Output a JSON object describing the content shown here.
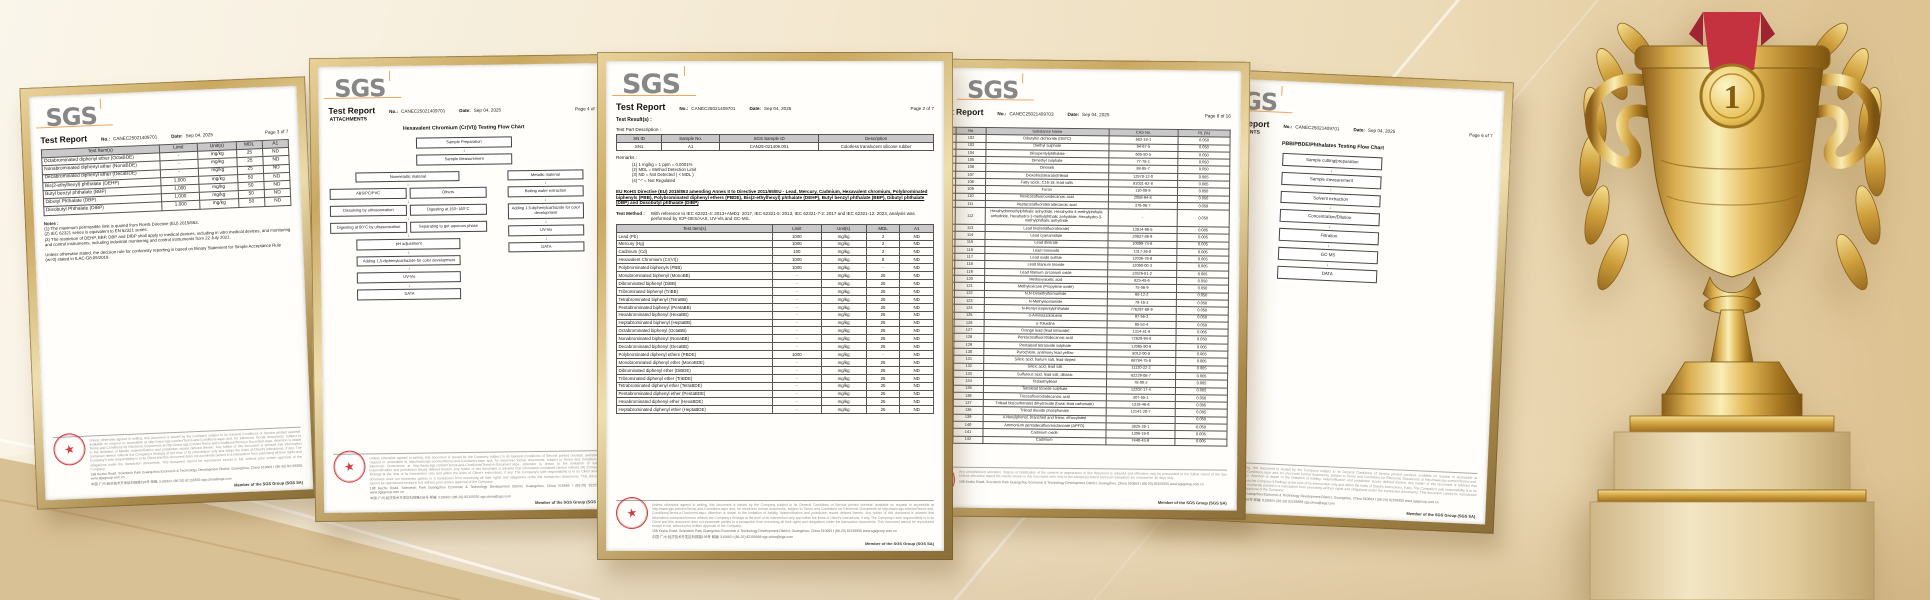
{
  "labels": {
    "brand": "SGS",
    "no": "No.:",
    "date": "Date:"
  },
  "scene": {
    "trophy_medal_number": "1"
  },
  "footer": {
    "disclaimer1": "Unless otherwise agreed in writing, this document is issued by the Company subject to its General Conditions of Service printed overleaf, available on request or accessible at http://www.sgs.com/en/Terms-and-Conditions.aspx and, for electronic format documents, subject to Terms and Conditions for Electronic Documents at http://www.sgs.com/en/Terms-and-Conditions/Terms-e-Document.aspx. Attention is drawn to the limitation of liability, indemnification and jurisdiction issues defined therein. Any holder of this document is advised that information contained hereon reflects the Company's findings at the time of its intervention only and within the limits of Client's instructions, if any. The Company's sole responsibility is to its Client and this document does not exonerate parties to a transaction from exercising all their rights and obligations under the transaction documents. This document cannot be reproduced except in full, without prior written approval of the Company.",
    "disclaimer2": "Any unauthorized alteration, forgery or falsification of the content or appearance of this document is unlawful and offenders may be prosecuted to the fullest extent of the law. Unless otherwise stated the results shown in this test report refer only to the sample(s) tested and such sample(s) are retained for 30 days only.",
    "address_en": "198 Kezhu Road, Scientech Park Guangzhou Economic & Technology Development District, Guangzhou, China 510663    t (86-20) 82155555    www.sgsgroup.com.cn",
    "address_cn": "中国·广州·经济技术开发区科珠路198号    邮编: 510663    t (86-20) 82155555    sgs.china@sgs.com",
    "member": "Member of the SGS Group (SGS SA)"
  },
  "cert1": {
    "title": "Test Report",
    "no": "CANEC25021409701",
    "date": "Sep 04, 2025",
    "page": "Page 3 of 7",
    "table": {
      "headers": [
        "Test Item(s)",
        "Limit",
        "Unit(s)",
        "MDL",
        "A1"
      ],
      "rows": [
        [
          "Octabrominated diphenyl ether (OctaBDE)",
          "-",
          "mg/kg",
          "25",
          "ND"
        ],
        [
          "Nonabrominated diphenyl ether (NonaBDE)",
          "-",
          "mg/kg",
          "25",
          "ND"
        ],
        [
          "Decabrominated diphenyl ether (DecaBDE)",
          "-",
          "mg/kg",
          "25",
          "ND"
        ],
        [
          "Bis(2-ethylhexyl) phthalate (DEHP)",
          "1,000",
          "mg/kg",
          "50",
          "ND"
        ],
        [
          "Butyl benzyl phthalate (BBP)",
          "1,000",
          "mg/kg",
          "50",
          "ND"
        ],
        [
          "Dibutyl Phthalate (DBP)",
          "1,000",
          "mg/kg",
          "50",
          "ND"
        ],
        [
          "Diisobutyl Phthalate (DIBP)",
          "1,000",
          "mg/kg",
          "50",
          "ND"
        ]
      ]
    },
    "notes_title": "Notes :",
    "notes": [
      "(1) The maximum permissible limit is quoted from RoHS Directive (EU) 2015/863.",
      "(2) IEC 62321 series is equivalent to EN 62321 series.",
      "(3) The restriction of DEHP, BBP, DBP and DIBP shall apply to medical devices, including in vitro medical devices, and monitoring and control instruments, including industrial monitoring and control instruments from 22 July 2021."
    ],
    "decision_rule": "Unless otherwise stated, the decision rule for conformity reporting is based on Binary Statement for Simple Acceptance Rule (w=0) stated in ILAC-G8:09/2019."
  },
  "cert2": {
    "title": "Test Report",
    "subtitle": "ATTACHMENTS",
    "no": "CANEC25021409701",
    "date": "Sep 04, 2025",
    "page": "Page 4 of 7",
    "flow_title": "Hexavalent Chromium (Cr(VI)) Testing Flow Chart",
    "flow": {
      "top": [
        "Sample Preparation",
        "Sample Measurement"
      ],
      "left_head": "Nonmetallic material",
      "left_pairs": [
        [
          "ABS/PC/PVC",
          "Others"
        ],
        [
          "Dissolving by ultrasonication",
          "Digesting at 150~160°C"
        ],
        [
          "Digesting at 60°C by ultrasonication",
          "Separating to get aqueous phase"
        ]
      ],
      "left_tail": [
        "pH adjustment",
        "Adding 1,5-diphenylcarbazide for color development",
        "UV-Vis",
        "DATA"
      ],
      "right": [
        "Metallic material",
        "Boiling water extraction",
        "Adding 1,5-diphenylcarbazide for color development",
        "UV-Vis",
        "DATA"
      ]
    }
  },
  "cert3": {
    "title": "Test Report",
    "no": "CANEC25021409701",
    "date": "Sep 04, 2025",
    "page": "Page 2 of 7",
    "results_label": "Test Result(s) :",
    "part_label": "Test Part Description :",
    "part_table": {
      "headers": [
        "SN ID",
        "Sample No.",
        "SGS Sample ID",
        "Description"
      ],
      "rows": [
        [
          "SN1",
          "A1",
          "CAN25-021409.001",
          "Colorless translucent silicone rubber"
        ]
      ]
    },
    "remarks_label": "Remarks :",
    "remarks": [
      "(1)  1 mg/kg = 1 ppm = 0.0001%",
      "(2)  MDL = Method Detection Limit",
      "(3)  ND = Not Detected ( < MDL )",
      "(4)  \"-\" = Not Regulated"
    ],
    "rohs_heading": "EU RoHS Directive (EU) 2015/863 amending Annex II to Directive 2011/65/EU - Lead, Mercury, Cadmium, Hexavalent chromium, Polybrominated biphenyls (PBB), Polybrominated diphenyl ethers (PBDE), Bis(2-ethylhexyl) phthalate (DEHP), Butyl benzyl phthalate (BBP), Dibutyl phthalate (DBP) and Diisobutyl phthalate (DIBP)",
    "method_label": "Test Method :",
    "method": "With reference to IEC 62321-4: 2013+AMD1: 2017, IEC 62321-5: 2013, IEC 62321-7-2: 2017 and IEC 62321-12: 2023, analysis was performed by ICP-OES/AAS, UV-Vis and GC-MS.",
    "table": {
      "headers": [
        "Test Item(s)",
        "Limit",
        "Unit(s)",
        "MDL",
        "A1"
      ],
      "rows": [
        [
          "Lead (Pb)",
          "1000",
          "mg/kg",
          "2",
          "ND"
        ],
        [
          "Mercury (Hg)",
          "1000",
          "mg/kg",
          "2",
          "ND"
        ],
        [
          "Cadmium (Cd)",
          "100",
          "mg/kg",
          "2",
          "ND"
        ],
        [
          "Hexavalent Chromium (Cr(VI))",
          "1000",
          "mg/kg",
          "8",
          "ND"
        ],
        [
          "Polybrominated biphenyls (PBB)",
          "1000",
          "mg/kg",
          "-",
          "ND"
        ],
        [
          "Monobrominated biphenyl (MonoBB)",
          "-",
          "mg/kg",
          "25",
          "ND"
        ],
        [
          "Dibrominated biphenyl (DiBB)",
          "-",
          "mg/kg",
          "25",
          "ND"
        ],
        [
          "Tribrominated biphenyl (TriBB)",
          "-",
          "mg/kg",
          "25",
          "ND"
        ],
        [
          "Tetrabrominated biphenyl (TetraBB)",
          "-",
          "mg/kg",
          "25",
          "ND"
        ],
        [
          "Pentabrominated biphenyl (PentaBB)",
          "-",
          "mg/kg",
          "25",
          "ND"
        ],
        [
          "Hexabrominated biphenyl (HexaBB)",
          "-",
          "mg/kg",
          "25",
          "ND"
        ],
        [
          "Heptabrominated biphenyl (HeptaBB)",
          "-",
          "mg/kg",
          "25",
          "ND"
        ],
        [
          "Octabrominated biphenyl (OctaBB)",
          "-",
          "mg/kg",
          "25",
          "ND"
        ],
        [
          "Nonabrominated biphenyl (NonaBB)",
          "-",
          "mg/kg",
          "25",
          "ND"
        ],
        [
          "Decabrominated biphenyl (DecaBB)",
          "-",
          "mg/kg",
          "25",
          "ND"
        ],
        [
          "Polybrominated diphenyl ethers (PBDE)",
          "1000",
          "mg/kg",
          "-",
          "ND"
        ],
        [
          "Monobrominated diphenyl ether (MonoBDE)",
          "-",
          "mg/kg",
          "25",
          "ND"
        ],
        [
          "Dibrominated diphenyl ether (DiBDE)",
          "-",
          "mg/kg",
          "25",
          "ND"
        ],
        [
          "Tribrominated diphenyl ether (TriBDE)",
          "-",
          "mg/kg",
          "25",
          "ND"
        ],
        [
          "Tetrabrominated diphenyl ether (TetraBDE)",
          "-",
          "mg/kg",
          "25",
          "ND"
        ],
        [
          "Pentabrominated diphenyl ether (PentaBDE)",
          "-",
          "mg/kg",
          "25",
          "ND"
        ],
        [
          "Hexabrominated diphenyl ether (HexaBDE)",
          "-",
          "mg/kg",
          "25",
          "ND"
        ],
        [
          "Heptabrominated diphenyl ether (HeptaBDE)",
          "-",
          "mg/kg",
          "25",
          "ND"
        ]
      ]
    }
  },
  "cert4": {
    "title": "Test Report",
    "subtitle": "(F/HC)",
    "no": "CANEC25021409703",
    "date": "Sep 04, 2025",
    "page": "Page 8 of 16",
    "table": {
      "headers": [
        "Batch",
        "No.",
        "Substance Name",
        "CAS No.",
        "RL (%)"
      ],
      "rows": [
        [
          "VIII",
          "102",
          "Dibutyltin dichloride (DBTC)",
          "683-18-1",
          "0.050"
        ],
        [
          "VIII",
          "103",
          "Diethyl sulphate",
          "64-67-5",
          "0.050"
        ],
        [
          "VIII",
          "104",
          "Diisopentylphthalate",
          "605-50-5",
          "0.050"
        ],
        [
          "VIII",
          "105",
          "Dimethyl sulphate",
          "77-78-1",
          "0.050"
        ],
        [
          "VIII",
          "106",
          "Dinoseb",
          "88-85-7",
          "0.050"
        ],
        [
          "VIII",
          "107",
          "Dioxobis(stearato)trilead",
          "12578-12-0",
          "0.005"
        ],
        [
          "VIII",
          "108",
          "Fatty acids, C16-18, lead salts",
          "91031-62-8",
          "0.005"
        ],
        [
          "VIII",
          "109",
          "Furan",
          "110-00-9",
          "0.050"
        ],
        [
          "VIII",
          "110",
          "Henicosafluoroundecanoic acid",
          "2058-94-8",
          "0.050"
        ],
        [
          "VIII",
          "111",
          "Heptacosafluorotetradecanoic acid",
          "376-06-7",
          "0.050"
        ],
        [
          "VIII",
          "112",
          "Hexahydromethylphthalic anhydride, Hexahydro-4-methylphthalic anhydride, Hexahydro-1-methylphthalic anhydride, Hexahydro-3-methylphthalic anhydride",
          "-",
          "0.050"
        ],
        [
          "VIII",
          "113",
          "Lead bis(tetrafluoroborate)",
          "13814-96-5",
          "0.005"
        ],
        [
          "VIII",
          "114",
          "Lead cyanamidate",
          "20837-86-9",
          "0.005"
        ],
        [
          "VIII",
          "115",
          "Lead dinitrate",
          "10099-74-8",
          "0.005"
        ],
        [
          "VIII",
          "116",
          "Lead monoxide",
          "1317-36-8",
          "0.005"
        ],
        [
          "VIII",
          "117",
          "Lead oxide sulfate",
          "12036-76-9",
          "0.005"
        ],
        [
          "VIII",
          "118",
          "Lead titanium trioxide",
          "12060-00-3",
          "0.005"
        ],
        [
          "VIII",
          "119",
          "Lead titanium zirconium oxide",
          "12626-81-2",
          "0.005"
        ],
        [
          "VIII",
          "120",
          "Methoxyacetic acid",
          "625-45-6",
          "0.050"
        ],
        [
          "VIII",
          "121",
          "Methyloxirane (Propylene oxide)",
          "75-56-9",
          "0.050"
        ],
        [
          "VIII",
          "122",
          "N,N-Dimethylformamide",
          "68-12-2",
          "0.050"
        ],
        [
          "VIII",
          "123",
          "N-Methylacetamide",
          "79-16-3",
          "0.050"
        ],
        [
          "VIII",
          "124",
          "N-Pentyl-isopentylphthalate",
          "776297-69-9",
          "0.050"
        ],
        [
          "VIII",
          "125",
          "o-Aminoazotoluene",
          "97-56-3",
          "0.050"
        ],
        [
          "VIII",
          "126",
          "o-Toluidine",
          "95-53-4",
          "0.050"
        ],
        [
          "VIII",
          "127",
          "Orange lead (lead tetroxide)",
          "1314-41-6",
          "0.005"
        ],
        [
          "VIII",
          "128",
          "Pentacosafluorotridecanoic acid",
          "72629-94-8",
          "0.050"
        ],
        [
          "VIII",
          "129",
          "Pentalead tetraoxide sulphate",
          "12065-90-6",
          "0.005"
        ],
        [
          "VIII",
          "130",
          "Pyrochlore, antimony lead yellow",
          "8012-00-8",
          "0.005"
        ],
        [
          "VIII",
          "131",
          "Silicic acid, barium salt, lead-doped",
          "68784-75-8",
          "0.005"
        ],
        [
          "VIII",
          "132",
          "Silicic acid, lead salt",
          "11120-22-2",
          "0.005"
        ],
        [
          "VIII",
          "133",
          "Sulfurous acid, lead salt, dibasic",
          "62229-08-7",
          "0.005"
        ],
        [
          "VIII",
          "134",
          "Tetraethyllead",
          "78-00-2",
          "0.005"
        ],
        [
          "VIII",
          "135",
          "Tetralead trioxide sulphate",
          "12202-17-4",
          "0.005"
        ],
        [
          "VIII",
          "136",
          "Tricosafluorododecanoic acid",
          "307-55-1",
          "0.050"
        ],
        [
          "VIII",
          "137",
          "Trilead bis(carbonate) dihydroxide (basic lead carbonate)",
          "1319-46-6",
          "0.005"
        ],
        [
          "VIII",
          "138",
          "Trilead dioxide phosphonate",
          "12141-20-7",
          "0.005"
        ],
        [
          "IX",
          "139",
          "4-Nonylphenol, branched and linear, ethoxylated",
          "-",
          "0.050"
        ],
        [
          "IX",
          "140",
          "Ammonium pentadecafluorooctanoate (APFO)",
          "3825-26-1",
          "0.050"
        ],
        [
          "IX",
          "141",
          "Cadmium oxide",
          "1306-19-0",
          "0.005"
        ],
        [
          "IX",
          "142",
          "Cadmium",
          "7440-43-9",
          "0.005"
        ]
      ]
    }
  },
  "cert5": {
    "title": "Test Report",
    "subtitle": "ATTACHMENTS",
    "no": "CANEC25021409701",
    "date": "Sep 04, 2025",
    "page": "Page 6 of 7",
    "flow_title": "PBB/PBDE/Phthalates Testing Flow Chart",
    "steps": [
      "Sample cutting/preparation",
      "Sample measurement",
      "Solvent extraction",
      "Concentration/Dilution",
      "Filtration",
      "GC-MS",
      "DATA"
    ]
  }
}
